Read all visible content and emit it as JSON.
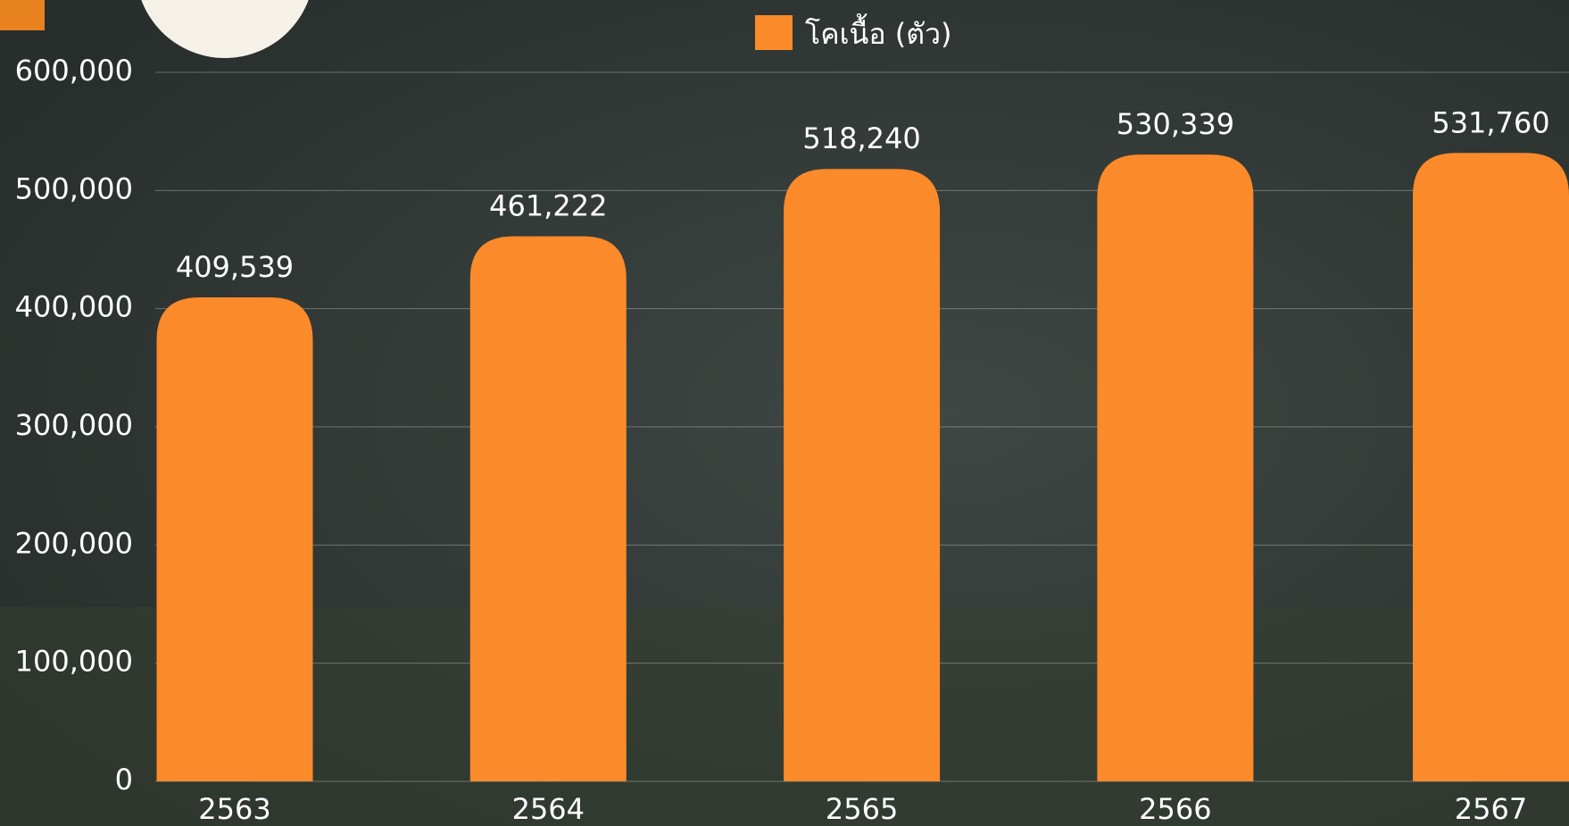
{
  "chart_data": {
    "type": "bar",
    "categories": [
      "2563",
      "2564",
      "2565",
      "2566",
      "2567"
    ],
    "series": [
      {
        "name": "โคเนื้อ (ตัว)",
        "color": "#fb8a2a",
        "values": [
          409539,
          461222,
          518240,
          530339,
          531760
        ],
        "value_labels": [
          "409,539",
          "461,222",
          "518,240",
          "530,339",
          "531,760"
        ]
      }
    ],
    "ylim": [
      0,
      600000
    ],
    "yticks": [
      0,
      {
        "value": 100000,
        "label": "100,000"
      },
      {
        "value": 200000,
        "label": "200,000"
      },
      {
        "value": 300000,
        "label": "300,000"
      },
      {
        "value": 400000,
        "label": "400,000"
      },
      {
        "value": 500000,
        "label": "500,000"
      },
      {
        "value": 600000,
        "label": "600,000"
      }
    ],
    "grid": true
  }
}
